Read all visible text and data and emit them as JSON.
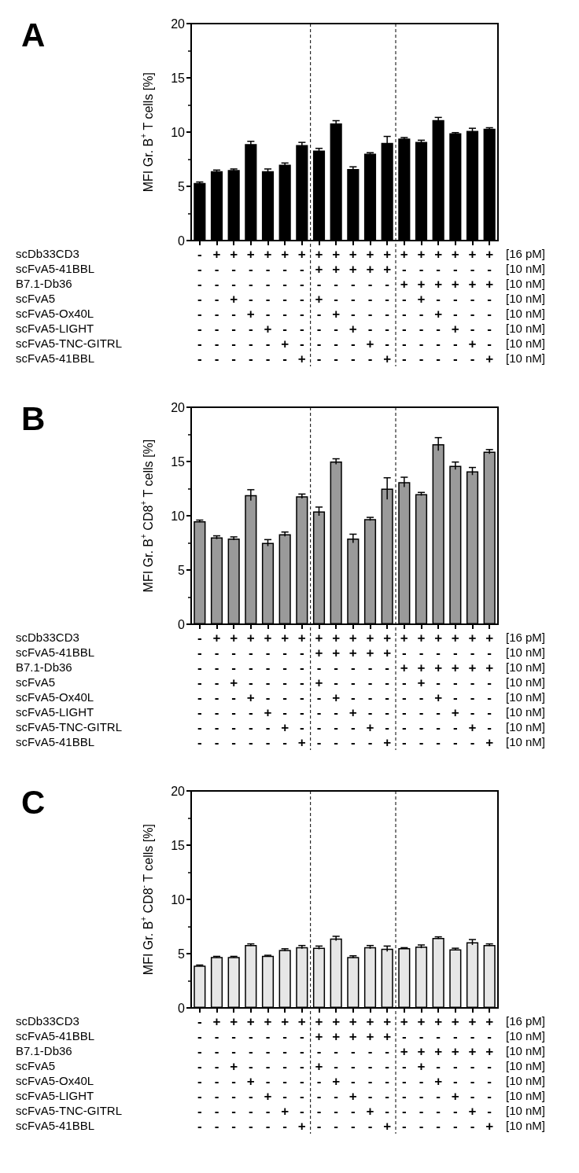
{
  "chart_data": [
    {
      "type": "bar",
      "title": "A",
      "ylabel": "MFI Gr. B$^{+}$ T cells [%]",
      "categories": [
        "-\n-\n-\n-\n-\n-\n-\n-",
        "+\n-\n-\n-\n-\n-\n-\n-",
        "+\n-\n-\n+\n-\n-\n-\n-",
        "+\n-\n-\n-\n+\n-\n-\n-",
        "+\n-\n-\n-\n-\n+\n-\n-",
        "+\n-\n-\n-\n-\n-\n+\n-",
        "+\n-\n-\n-\n-\n-\n-\n+",
        "+\n+\n-\n+\n-\n-\n-\n-",
        "+\n+\n-\n-\n+\n-\n-\n-",
        "+\n+\n-\n-\n-\n+\n-\n-",
        "+\n+\n-\n-\n-\n-\n+\n-",
        "+\n+\n-\n-\n-\n-\n-\n+",
        "+\n-\n+\n-\n-\n-\n-\n-",
        "+\n-\n+\n+\n-\n-\n-\n-",
        "+\n-\n+\n-\n+\n-\n-\n-",
        "+\n-\n+\n-\n-\n+\n-\n-",
        "+\n-\n+\n-\n-\n-\n+\n-",
        "+\n-\n+\n-\n-\n-\n-\n+"
      ],
      "series": [
        {
          "color": "#000000",
          "values": [
            5.3,
            6.4,
            6.5,
            8.9,
            6.4,
            7.0,
            8.8,
            8.3,
            10.8,
            6.6,
            8.0,
            9.0,
            9.4,
            9.1,
            11.1,
            9.9,
            10.1,
            10.3
          ],
          "errors": [
            0.1,
            0.1,
            0.1,
            0.25,
            0.2,
            0.15,
            0.25,
            0.2,
            0.25,
            0.2,
            0.1,
            0.6,
            0.1,
            0.15,
            0.25,
            0.05,
            0.25,
            0.1
          ]
        }
      ],
      "ylim": [
        0,
        20
      ],
      "yticks": [
        0,
        5,
        10,
        15,
        20
      ],
      "grid": false,
      "annotations": [
        "scDb33CD3",
        "[16 pM]",
        "scFvA5-41BBL",
        "[10 nM]",
        "B7.1-Db36",
        "[10 nM]",
        "scFvA5",
        "[10 nM]",
        "scFvA5-Ox40L",
        "[10 nM]",
        "scFvA5-LIGHT",
        "[10 nM]",
        "scFvA5-TNC-GITRL",
        "[10 nM]",
        "scFvA5-41BBL",
        "[10 nM]"
      ]
    },
    {
      "type": "bar",
      "title": "B",
      "ylabel": "MFI Gr. B$^{+}$ CD8$^{+}$ T cells [%]",
      "categories": [
        "-\n-\n-\n-\n-\n-\n-\n-",
        "+\n-\n-\n-\n-\n-\n-\n-",
        "+\n-\n-\n+\n-\n-\n-\n-",
        "+\n-\n-\n-\n+\n-\n-\n-",
        "+\n-\n-\n-\n-\n+\n-\n-",
        "+\n-\n-\n-\n-\n-\n+\n-",
        "+\n-\n-\n-\n-\n-\n-\n+",
        "+\n+\n-\n+\n-\n-\n-\n-",
        "+\n+\n-\n-\n+\n-\n-\n-",
        "+\n+\n-\n-\n-\n+\n-\n-",
        "+\n+\n-\n-\n-\n-\n+\n-",
        "+\n+\n-\n-\n-\n-\n-\n+",
        "+\n-\n+\n-\n-\n-\n-\n-",
        "+\n-\n+\n+\n-\n-\n-\n-",
        "+\n-\n+\n-\n+\n-\n-\n-",
        "+\n-\n+\n-\n-\n+\n-\n-",
        "+\n-\n+\n-\n-\n-\n+\n-",
        "+\n-\n+\n-\n-\n-\n-\n+"
      ],
      "series": [
        {
          "color": "#9a9a9a",
          "values": [
            9.5,
            8.0,
            7.9,
            11.9,
            7.5,
            8.3,
            11.8,
            10.4,
            15.0,
            7.9,
            9.7,
            12.5,
            13.1,
            12.0,
            16.6,
            14.6,
            14.1,
            15.9
          ],
          "errors": [
            0.1,
            0.15,
            0.15,
            0.5,
            0.3,
            0.2,
            0.2,
            0.4,
            0.25,
            0.4,
            0.15,
            1.0,
            0.45,
            0.15,
            0.6,
            0.35,
            0.35,
            0.2
          ]
        }
      ],
      "ylim": [
        0,
        20
      ],
      "yticks": [
        0,
        5,
        10,
        15,
        20
      ],
      "grid": false,
      "annotations": [
        "scDb33CD3",
        "[16 pM]",
        "scFvA5-41BBL",
        "[10 nM]",
        "B7.1-Db36",
        "[10 nM]",
        "scFvA5",
        "[10 nM]",
        "scFvA5-Ox40L",
        "[10 nM]",
        "scFvA5-LIGHT",
        "[10 nM]",
        "scFvA5-TNC-GITRL",
        "[10 nM]",
        "scFvA5-41BBL",
        "[10 nM]"
      ]
    },
    {
      "type": "bar",
      "title": "C",
      "ylabel": "MFI Gr. B$^{+}$ CD8$^{-}$ T cells [%]",
      "categories": [
        "-\n-\n-\n-\n-\n-\n-\n-",
        "+\n-\n-\n-\n-\n-\n-\n-",
        "+\n-\n-\n+\n-\n-\n-\n-",
        "+\n-\n-\n-\n+\n-\n-\n-",
        "+\n-\n-\n-\n-\n+\n-\n-",
        "+\n-\n-\n-\n-\n-\n+\n-",
        "+\n-\n-\n-\n-\n-\n-\n+",
        "+\n+\n-\n+\n-\n-\n-\n-",
        "+\n+\n-\n-\n+\n-\n-\n-",
        "+\n+\n-\n-\n-\n+\n-\n-",
        "+\n+\n-\n-\n-\n-\n+\n-",
        "+\n+\n-\n-\n-\n-\n-\n+",
        "+\n-\n+\n-\n-\n-\n-\n-",
        "+\n-\n+\n+\n-\n-\n-\n-",
        "+\n-\n+\n-\n+\n-\n-\n-",
        "+\n-\n+\n-\n-\n+\n-\n-",
        "+\n-\n+\n-\n-\n-\n+\n-",
        "+\n-\n+\n-\n-\n-\n-\n+"
      ],
      "series": [
        {
          "color": "#e6e6e6",
          "values": [
            3.9,
            4.7,
            4.7,
            5.8,
            4.8,
            5.35,
            5.6,
            5.55,
            6.4,
            4.7,
            5.6,
            5.45,
            5.5,
            5.65,
            6.45,
            5.4,
            6.05,
            5.8
          ],
          "errors": [
            0.05,
            0.05,
            0.05,
            0.1,
            0.05,
            0.1,
            0.15,
            0.15,
            0.2,
            0.1,
            0.15,
            0.25,
            0.05,
            0.15,
            0.1,
            0.1,
            0.25,
            0.1
          ]
        }
      ],
      "ylim": [
        0,
        20
      ],
      "yticks": [
        0,
        5,
        10,
        15,
        20
      ],
      "grid": false,
      "annotations": [
        "scDb33CD3",
        "[16 pM]",
        "scFvA5-41BBL",
        "[10 nM]",
        "B7.1-Db36",
        "[10 nM]",
        "scFvA5",
        "[10 nM]",
        "scFvA5-Ox40L",
        "[10 nM]",
        "scFvA5-LIGHT",
        "[10 nM]",
        "scFvA5-TNC-GITRL",
        "[10 nM]",
        "scFvA5-41BBL",
        "[10 nM]"
      ]
    }
  ]
}
